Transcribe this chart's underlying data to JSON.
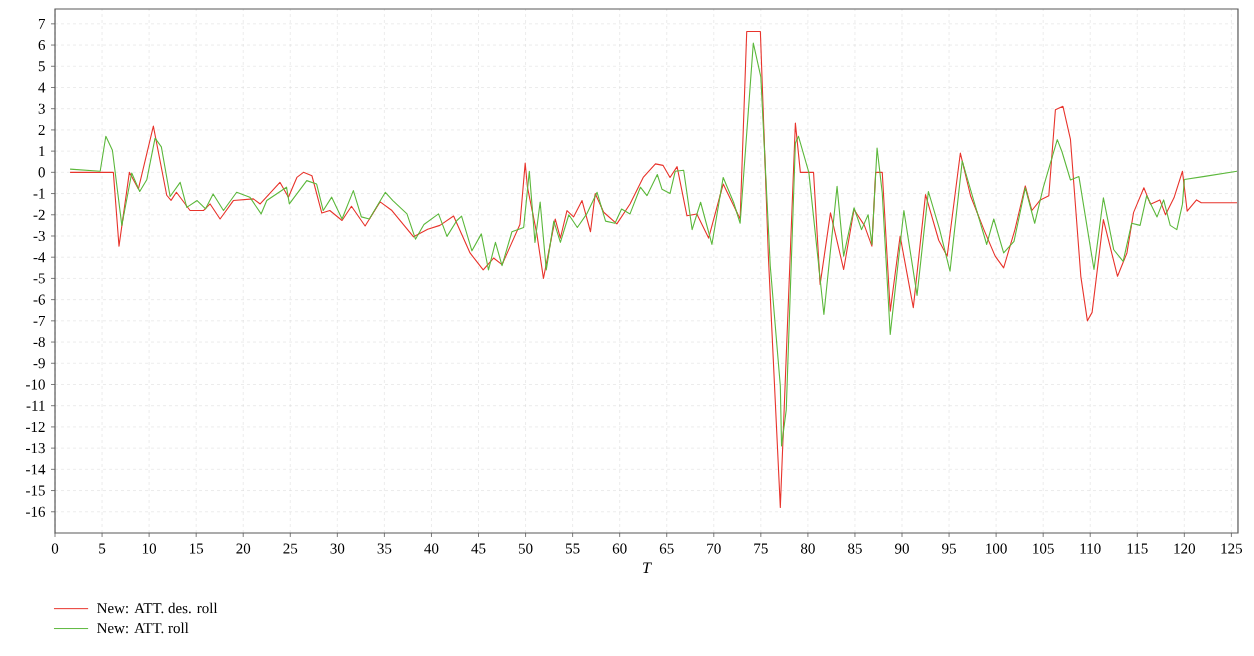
{
  "chart_data": {
    "type": "line",
    "xlabel": "T",
    "xlim": [
      0,
      125.7
    ],
    "ylim": [
      -17,
      7.7
    ],
    "xticks": [
      0,
      5,
      10,
      15,
      20,
      25,
      30,
      35,
      40,
      45,
      50,
      55,
      60,
      65,
      70,
      75,
      80,
      85,
      90,
      95,
      100,
      105,
      110,
      115,
      120,
      125
    ],
    "yticks": [
      -16,
      -15,
      -14,
      -13,
      -12,
      -11,
      -10,
      -9,
      -8,
      -7,
      -6,
      -5,
      -4,
      -3,
      -2,
      -1,
      0,
      1,
      2,
      3,
      4,
      5,
      6,
      7
    ],
    "grid": true,
    "legend": "bottom left",
    "series": [
      {
        "name": "New: ATT. des. roll",
        "color": "#e8342c",
        "x": [
          1.6,
          6.2,
          6.8,
          7.9,
          8.86,
          10.45,
          11.87,
          12.33,
          12.9,
          14.35,
          15.77,
          16.48,
          17.54,
          18.95,
          21.08,
          21.8,
          23.9,
          24.8,
          25.7,
          26.4,
          27.3,
          28.35,
          29.2,
          30.5,
          31.5,
          32.95,
          34.55,
          35.8,
          38.1,
          39.6,
          40.9,
          42.35,
          44.1,
          45.5,
          46.6,
          47.5,
          49.4,
          49.96,
          50.2,
          51.2,
          51.9,
          53.15,
          53.7,
          54.4,
          55.1,
          56.0,
          56.9,
          57.4,
          58.3,
          59.7,
          61.1,
          62.5,
          63.8,
          64.6,
          65.35,
          66.1,
          67.15,
          68.2,
          69.45,
          71.0,
          72.8,
          73.5,
          74.95,
          75.8,
          77.07,
          78.67,
          79.2,
          80.6,
          81.3,
          82.4,
          83.8,
          84.9,
          86.0,
          86.8,
          87.2,
          87.9,
          88.75,
          89.8,
          91.2,
          92.5,
          93.9,
          94.8,
          96.2,
          97.3,
          98.7,
          99.9,
          100.8,
          102.0,
          103.1,
          103.8,
          104.7,
          105.6,
          106.3,
          107.1,
          107.9,
          109.0,
          109.7,
          110.2,
          111.4,
          112.9,
          113.9,
          114.6,
          115.7,
          116.4,
          117.4,
          118.0,
          118.9,
          119.8,
          120.3,
          121.3,
          121.8,
          125.6
        ],
        "values": [
          0,
          0,
          -3.48,
          0,
          -0.78,
          2.18,
          -1.08,
          -1.32,
          -0.94,
          -1.8,
          -1.8,
          -1.49,
          -2.2,
          -1.33,
          -1.25,
          -1.49,
          -0.47,
          -1.17,
          -0.24,
          0,
          -0.16,
          -1.92,
          -1.8,
          -2.27,
          -1.6,
          -2.53,
          -1.39,
          -1.8,
          -3.04,
          -2.68,
          -2.5,
          -2.06,
          -3.8,
          -4.6,
          -4.04,
          -4.35,
          -2.46,
          0.44,
          -0.7,
          -2.9,
          -5.0,
          -2.2,
          -3.1,
          -1.8,
          -2.1,
          -1.33,
          -2.8,
          -1.0,
          -1.88,
          -2.43,
          -1.49,
          -0.24,
          0.4,
          0.33,
          -0.24,
          0.27,
          -2.05,
          -1.96,
          -3.1,
          -0.55,
          -2.2,
          6.64,
          6.64,
          -3.95,
          -15.8,
          2.32,
          0,
          0,
          -5.28,
          -1.91,
          -4.58,
          -1.75,
          -2.5,
          -3.48,
          0,
          0,
          -6.54,
          -3.0,
          -6.38,
          -1.05,
          -3.2,
          -3.95,
          0.91,
          -1.13,
          -2.7,
          -3.95,
          -4.5,
          -2.7,
          -0.64,
          -1.8,
          -1.3,
          -1.1,
          2.95,
          3.11,
          1.55,
          -4.9,
          -7.0,
          -6.6,
          -2.23,
          -4.9,
          -3.8,
          -1.9,
          -0.73,
          -1.5,
          -1.3,
          -2.0,
          -1.2,
          0.05,
          -1.83,
          -1.3,
          -1.43,
          -1.43
        ]
      },
      {
        "name": "New: ATT. roll",
        "color": "#5cb83c",
        "x": [
          1.6,
          4.8,
          5.4,
          6.1,
          7.1,
          8.15,
          9.0,
          9.75,
          10.63,
          11.3,
          12.23,
          13.3,
          14.0,
          15.1,
          16.0,
          16.8,
          17.9,
          19.3,
          20.7,
          21.9,
          22.5,
          24.6,
          24.9,
          26.75,
          27.8,
          28.5,
          29.4,
          30.5,
          31.7,
          32.55,
          33.4,
          35.1,
          35.9,
          37.4,
          38.3,
          39.2,
          40.75,
          41.65,
          42.7,
          43.2,
          44.3,
          45.3,
          46.06,
          46.8,
          47.5,
          48.55,
          49.8,
          50.4,
          51.0,
          51.55,
          52.2,
          53.0,
          53.7,
          54.6,
          55.5,
          56.5,
          57.6,
          58.5,
          59.5,
          60.2,
          61.1,
          62.2,
          62.9,
          64.0,
          64.5,
          65.35,
          65.9,
          66.8,
          67.7,
          68.6,
          69.8,
          71.0,
          72.1,
          72.8,
          74.2,
          75.0,
          76.0,
          77.07,
          77.2,
          77.7,
          78.67,
          79.0,
          80.1,
          81.7,
          83.1,
          83.8,
          84.9,
          85.7,
          86.4,
          86.8,
          87.35,
          87.9,
          88.75,
          90.2,
          91.6,
          92.8,
          94.0,
          95.1,
          96.4,
          97.6,
          99.0,
          99.75,
          100.8,
          101.9,
          103.1,
          104.1,
          105.0,
          106.5,
          107.0,
          107.9,
          108.8,
          110.4,
          111.4,
          112.5,
          113.5,
          114.4,
          115.3,
          116.0,
          117.1,
          117.8,
          118.5,
          119.2,
          119.8,
          120.0,
          122.0,
          125.6
        ],
        "values": [
          0.15,
          0.05,
          1.7,
          1.04,
          -2.5,
          -0.03,
          -0.9,
          -0.35,
          1.61,
          1.2,
          -1.14,
          -0.47,
          -1.65,
          -1.33,
          -1.72,
          -1.02,
          -1.8,
          -0.94,
          -1.17,
          -1.96,
          -1.33,
          -0.7,
          -1.49,
          -0.39,
          -0.55,
          -1.8,
          -1.17,
          -2.2,
          -0.86,
          -2.1,
          -2.2,
          -0.94,
          -1.33,
          -1.96,
          -3.15,
          -2.46,
          -1.96,
          -3.02,
          -2.27,
          -2.06,
          -3.7,
          -2.9,
          -4.6,
          -3.3,
          -4.4,
          -2.8,
          -2.6,
          0.05,
          -3.3,
          -1.4,
          -4.6,
          -2.3,
          -3.3,
          -2.0,
          -2.6,
          -1.96,
          -0.94,
          -2.3,
          -2.4,
          -1.73,
          -1.96,
          -0.7,
          -1.1,
          -0.1,
          -0.8,
          -1.0,
          0.05,
          0.1,
          -2.7,
          -1.41,
          -3.4,
          -0.24,
          -1.41,
          -2.4,
          6.09,
          4.5,
          -4.4,
          -10.07,
          -12.9,
          -11.2,
          1.38,
          1.7,
          0,
          -6.7,
          -0.66,
          -3.95,
          -1.67,
          -2.7,
          -2.0,
          -3.4,
          1.15,
          -0.97,
          -7.64,
          -1.8,
          -5.8,
          -0.9,
          -2.7,
          -4.66,
          0.53,
          -1.3,
          -3.4,
          -2.2,
          -3.8,
          -3.25,
          -0.73,
          -2.4,
          -0.73,
          1.54,
          0.97,
          -0.36,
          -0.2,
          -4.58,
          -1.2,
          -3.65,
          -4.2,
          -2.4,
          -2.5,
          -1.1,
          -2.1,
          -1.3,
          -2.5,
          -2.7,
          -1.5,
          -0.34,
          -0.2,
          0.05
        ]
      }
    ]
  }
}
